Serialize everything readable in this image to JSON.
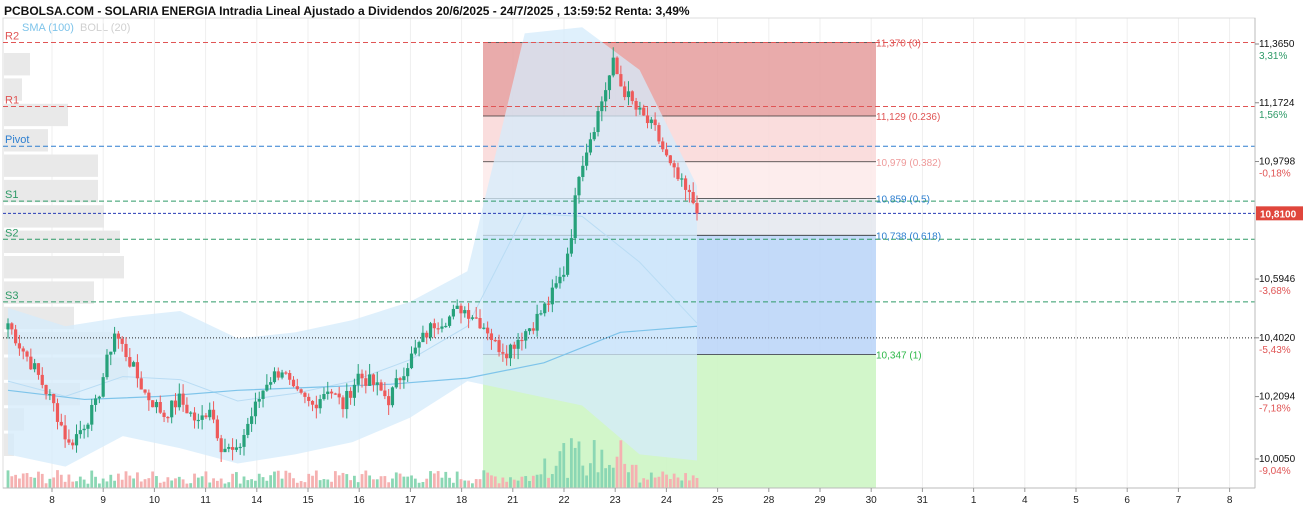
{
  "header": {
    "title": "PCBOLSA.COM - SOLARIA ENERGIA Intradia Lineal Ajustado a Dividendos 20/6/2025 - 24/7/2025 , 13:59:52 Renta: 3,49%",
    "sma_label": "SMA (100)",
    "boll_label": "BOLL (20)"
  },
  "colors": {
    "up": "#26a17a",
    "down": "#ee5a5a",
    "sma": "#7ec4ea",
    "band_fill": "#d4ebfb",
    "pivot": "#2e7fd0",
    "support": "#2e9a67",
    "resistance": "#e05555",
    "current": "#283cb5",
    "fib_dark_red": "#e59c9c",
    "fib_light_red": "#f9d7d7",
    "fib_lightest": "#fdeaea",
    "fib_gray": "#e4e8ef",
    "fib_blue": "#b8d3f8",
    "fib_green": "#cdf5c4",
    "up_vol": "#8bd7b4",
    "down_vol": "#f5b1b1"
  },
  "levels": [
    {
      "label": "R2",
      "price": 11.37,
      "type": "resistance"
    },
    {
      "label": "R1",
      "price": 11.16,
      "type": "resistance"
    },
    {
      "label": "Pivot",
      "price": 11.03,
      "type": "pivot"
    },
    {
      "label": "S1",
      "price": 10.85,
      "type": "support"
    },
    {
      "label": "S2",
      "price": 10.725,
      "type": "support"
    },
    {
      "label": "S3",
      "price": 10.52,
      "type": "support"
    }
  ],
  "fibonacci": [
    {
      "label": "11,370 (0)",
      "price": 11.37,
      "color": "#e05555"
    },
    {
      "label": "11,129 (0.236)",
      "price": 11.129,
      "color": "#e05555"
    },
    {
      "label": "10,979 (0.382)",
      "price": 10.979,
      "color": "#ee9a9a"
    },
    {
      "label": "10,859 (0.5)",
      "price": 10.859,
      "color": "#2e7fd0"
    },
    {
      "label": "10,738 (0.618)",
      "price": 10.738,
      "color": "#2e7fd0"
    },
    {
      "label": "10,347 (1)",
      "price": 10.347,
      "color": "#2fb84a"
    }
  ],
  "right_axis": [
    {
      "price": "11,3650",
      "pct": "3,31%",
      "value": 11.365,
      "positive": true
    },
    {
      "price": "11,1724",
      "pct": "1,56%",
      "value": 11.1724,
      "positive": true
    },
    {
      "price": "10,9798",
      "pct": "-0,18%",
      "value": 10.9798,
      "positive": false
    },
    {
      "price": "10,5946",
      "pct": "-3,68%",
      "value": 10.5946,
      "positive": false
    },
    {
      "price": "10,4020",
      "pct": "-5,43%",
      "value": 10.402,
      "positive": false
    },
    {
      "price": "10,2094",
      "pct": "-7,18%",
      "value": 10.2094,
      "positive": false
    },
    {
      "price": "10,0050",
      "pct": "-9,04%",
      "value": 10.005,
      "positive": false
    }
  ],
  "current_price": {
    "label": "10,8100",
    "value": 10.81
  },
  "previous_close": 10.402,
  "chart_data": {
    "type": "candlestick",
    "x_ticks": [
      "8",
      "9",
      "10",
      "11",
      "14",
      "15",
      "16",
      "17",
      "18",
      "21",
      "22",
      "23",
      "24",
      "25",
      "28",
      "29",
      "30",
      "31",
      "1",
      "4",
      "5",
      "6",
      "7",
      "8"
    ],
    "sessions_with_data": 13,
    "ylim": [
      9.96,
      11.4
    ],
    "candles_per_session": 14,
    "anchors": [
      [
        0,
        10.45
      ],
      [
        3,
        10.38
      ],
      [
        7,
        10.3
      ],
      [
        12,
        10.18
      ],
      [
        16,
        10.05
      ],
      [
        19,
        10.1
      ],
      [
        23,
        10.18
      ],
      [
        28,
        10.42
      ],
      [
        31,
        10.35
      ],
      [
        36,
        10.22
      ],
      [
        41,
        10.15
      ],
      [
        45,
        10.2
      ],
      [
        50,
        10.12
      ],
      [
        53,
        10.18
      ],
      [
        56,
        10.05
      ],
      [
        60,
        10.02
      ],
      [
        63,
        10.12
      ],
      [
        68,
        10.26
      ],
      [
        72,
        10.3
      ],
      [
        75,
        10.22
      ],
      [
        80,
        10.18
      ],
      [
        84,
        10.24
      ],
      [
        88,
        10.18
      ],
      [
        92,
        10.28
      ],
      [
        96,
        10.25
      ],
      [
        100,
        10.2
      ],
      [
        104,
        10.3
      ],
      [
        109,
        10.4
      ],
      [
        112,
        10.45
      ],
      [
        116,
        10.47
      ],
      [
        119,
        10.5
      ],
      [
        122,
        10.48
      ],
      [
        126,
        10.43
      ],
      [
        128,
        10.38
      ],
      [
        131,
        10.36
      ],
      [
        134,
        10.4
      ],
      [
        138,
        10.45
      ],
      [
        142,
        10.52
      ],
      [
        146,
        10.62
      ],
      [
        148,
        10.75
      ],
      [
        150,
        10.95
      ],
      [
        154,
        11.1
      ],
      [
        157,
        11.22
      ],
      [
        159,
        11.3
      ],
      [
        161,
        11.23
      ],
      [
        165,
        11.15
      ],
      [
        170,
        11.08
      ],
      [
        174,
        10.96
      ],
      [
        178,
        10.88
      ],
      [
        181,
        10.83
      ]
    ],
    "total_candles": 182,
    "sma_100": [
      10.23,
      10.2,
      10.21,
      10.23,
      10.24,
      10.25,
      10.27,
      10.32,
      10.42,
      10.44
    ],
    "bollinger_upper": [
      10.5,
      10.44,
      10.47,
      10.49,
      10.4,
      10.42,
      10.46,
      10.52,
      10.62,
      11.4,
      11.42,
      11.28,
      10.9
    ],
    "bollinger_lower": [
      10.02,
      9.98,
      10.08,
      10.04,
      9.99,
      10.02,
      10.06,
      10.14,
      10.26,
      10.22,
      10.18,
      10.02,
      10.0
    ],
    "volume_profile": [
      0.13,
      0.09,
      0.32,
      0.22,
      0.47,
      0.47,
      0.5,
      0.58,
      0.6,
      0.45,
      0.35,
      0.55,
      0.62,
      0.38,
      0.1,
      0.05
    ]
  }
}
